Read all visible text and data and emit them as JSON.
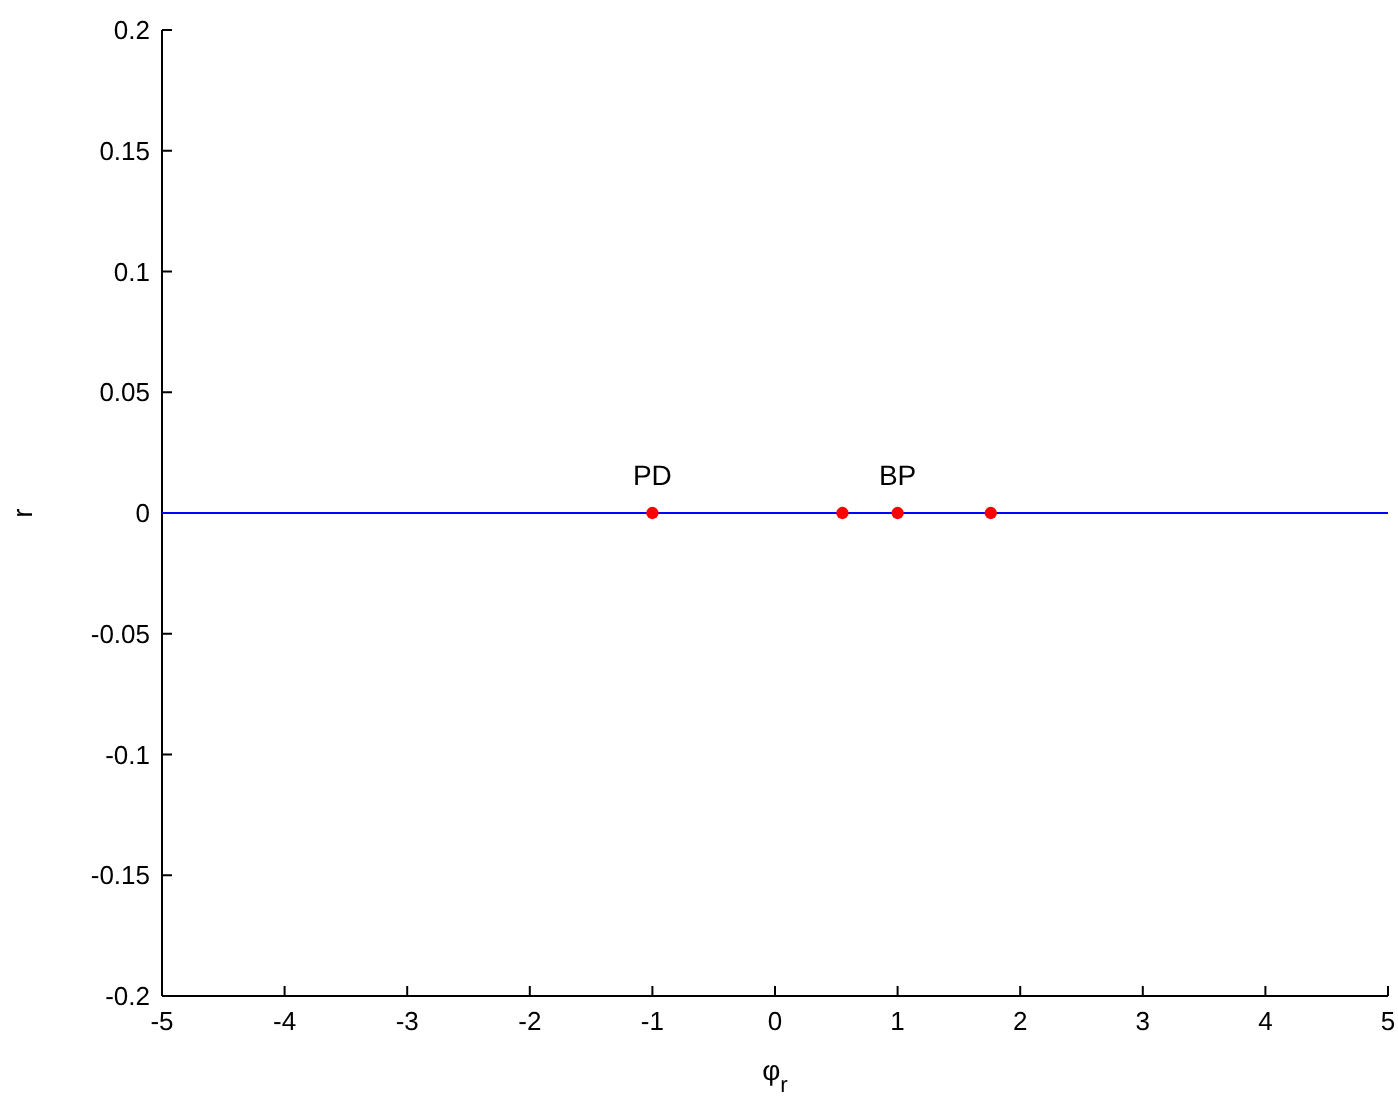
{
  "chart_data": {
    "type": "line",
    "xlabel": "φ$_{r}$",
    "ylabel": "r",
    "xlim": [
      -5,
      5
    ],
    "ylim": [
      -0.2,
      0.2
    ],
    "xticks": [
      -5,
      -4,
      -3,
      -2,
      -1,
      0,
      1,
      2,
      3,
      4,
      5
    ],
    "yticks": [
      -0.2,
      -0.15,
      -0.1,
      -0.05,
      0,
      0.05,
      0.1,
      0.15,
      0.2
    ],
    "series": [
      {
        "color": "#0000ff",
        "x": [
          -5,
          5
        ],
        "values": [
          0,
          0
        ],
        "marker": "none"
      },
      {
        "type": "scatter",
        "color": "#ff0000",
        "x": [
          -1,
          0.55,
          1,
          1.76
        ],
        "values": [
          0,
          0,
          0,
          0
        ],
        "marker": "circle"
      }
    ],
    "annotations": [
      {
        "text": "PD",
        "x": -1,
        "y": 0
      },
      {
        "text": "BP",
        "x": 1,
        "y": 0
      }
    ],
    "grid": false
  }
}
